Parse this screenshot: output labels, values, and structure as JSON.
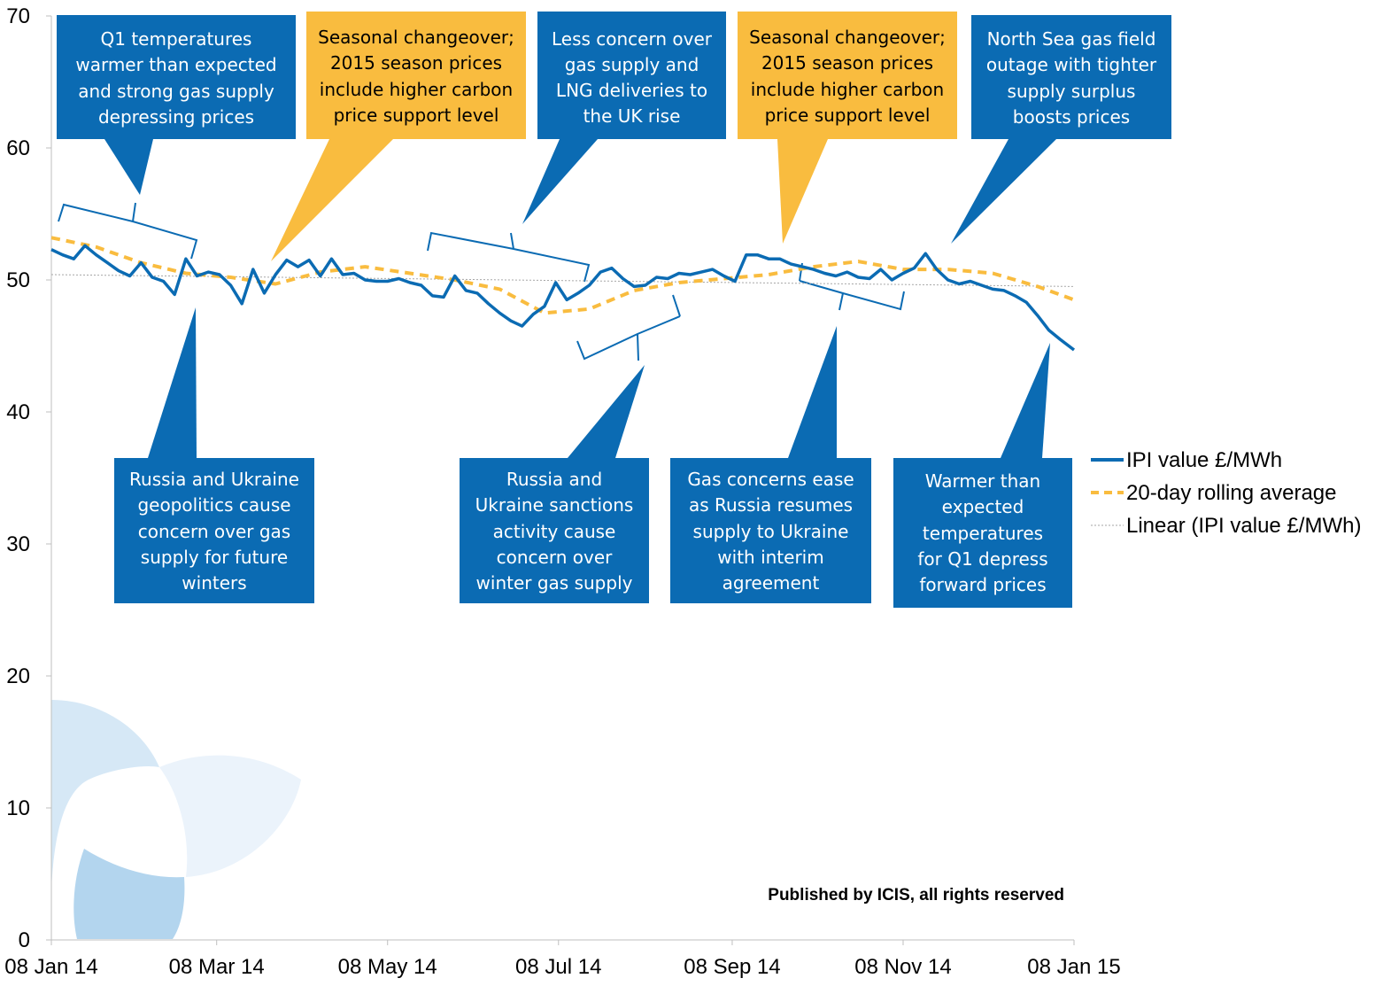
{
  "chart_data": {
    "type": "line",
    "title": "",
    "xlabel": "",
    "ylabel": "",
    "ylim": [
      0,
      70
    ],
    "y_ticks": [
      "0",
      "10",
      "20",
      "30",
      "40",
      "50",
      "60",
      "70"
    ],
    "x_tick_labels": [
      "08 Jan 14",
      "08 Mar 14",
      "08 May 14",
      "08 Jul 14",
      "08 Sep 14",
      "08 Nov 14",
      "08 Jan 15"
    ],
    "x_range": [
      "2014-01-08",
      "2015-01-08"
    ],
    "grid": false,
    "legend_position": "right",
    "series": [
      {
        "name": "IPI value £/MWh",
        "color": "#0B6BB3",
        "style": "solid",
        "x": [
          "2014-01-08",
          "2014-01-12",
          "2014-01-16",
          "2014-01-20",
          "2014-01-24",
          "2014-01-28",
          "2014-02-01",
          "2014-02-05",
          "2014-02-09",
          "2014-02-13",
          "2014-02-17",
          "2014-02-21",
          "2014-02-25",
          "2014-03-01",
          "2014-03-05",
          "2014-03-09",
          "2014-03-13",
          "2014-03-17",
          "2014-03-21",
          "2014-03-25",
          "2014-03-29",
          "2014-04-02",
          "2014-04-06",
          "2014-04-10",
          "2014-04-14",
          "2014-04-18",
          "2014-04-22",
          "2014-04-26",
          "2014-04-30",
          "2014-05-04",
          "2014-05-08",
          "2014-05-12",
          "2014-05-16",
          "2014-05-20",
          "2014-05-24",
          "2014-05-28",
          "2014-06-01",
          "2014-06-05",
          "2014-06-09",
          "2014-06-13",
          "2014-06-17",
          "2014-06-21",
          "2014-06-25",
          "2014-06-29",
          "2014-07-03",
          "2014-07-07",
          "2014-07-11",
          "2014-07-15",
          "2014-07-19",
          "2014-07-23",
          "2014-07-27",
          "2014-07-31",
          "2014-08-04",
          "2014-08-08",
          "2014-08-12",
          "2014-08-16",
          "2014-08-20",
          "2014-08-24",
          "2014-08-28",
          "2014-09-01",
          "2014-09-05",
          "2014-09-09",
          "2014-09-13",
          "2014-09-17",
          "2014-09-21",
          "2014-09-25",
          "2014-09-29",
          "2014-10-03",
          "2014-10-07",
          "2014-10-11",
          "2014-10-15",
          "2014-10-19",
          "2014-10-23",
          "2014-10-27",
          "2014-10-31",
          "2014-11-04",
          "2014-11-08",
          "2014-11-12",
          "2014-11-16",
          "2014-11-20",
          "2014-11-24",
          "2014-11-28",
          "2014-12-02",
          "2014-12-06",
          "2014-12-10",
          "2014-12-14",
          "2014-12-18",
          "2014-12-22",
          "2014-12-26",
          "2014-12-30",
          "2015-01-03",
          "2015-01-08"
        ],
        "values": [
          52.3,
          51.9,
          51.6,
          52.6,
          51.9,
          51.3,
          50.7,
          50.3,
          51.3,
          50.2,
          49.9,
          48.9,
          51.6,
          50.3,
          50.6,
          50.4,
          49.6,
          48.2,
          50.8,
          49.0,
          50.4,
          51.5,
          51.0,
          51.5,
          50.3,
          51.6,
          50.4,
          50.5,
          50.0,
          49.9,
          49.9,
          50.1,
          49.8,
          49.6,
          48.8,
          48.7,
          50.3,
          49.2,
          49.0,
          48.2,
          47.5,
          46.9,
          46.5,
          47.4,
          48.0,
          49.8,
          48.5,
          49.0,
          49.6,
          50.6,
          50.9,
          50.1,
          49.5,
          49.6,
          50.2,
          50.1,
          50.5,
          50.4,
          50.6,
          50.8,
          50.3,
          49.9,
          51.9,
          51.9,
          51.6,
          51.6,
          51.2,
          51.0,
          50.8,
          50.5,
          50.3,
          50.6,
          50.2,
          50.1,
          50.8,
          50.0,
          50.5,
          50.9,
          52.0,
          50.8,
          50.0,
          49.7,
          49.9,
          49.6,
          49.3,
          49.2,
          48.8,
          48.3,
          47.3,
          46.2,
          45.5,
          44.7
        ]
      },
      {
        "name": "20-day rolling average",
        "color": "#F9BC3F",
        "style": "dashed",
        "x": [
          "2014-01-08",
          "2014-01-24",
          "2014-02-09",
          "2014-02-25",
          "2014-03-13",
          "2014-03-29",
          "2014-04-14",
          "2014-04-30",
          "2014-05-16",
          "2014-06-01",
          "2014-06-17",
          "2014-07-03",
          "2014-07-19",
          "2014-08-04",
          "2014-08-20",
          "2014-09-05",
          "2014-09-21",
          "2014-10-07",
          "2014-10-23",
          "2014-11-08",
          "2014-11-24",
          "2014-12-10",
          "2014-12-26",
          "2015-01-08"
        ],
        "values": [
          53.2,
          52.5,
          51.3,
          50.5,
          50.2,
          49.7,
          50.6,
          51.0,
          50.5,
          50.0,
          49.3,
          47.5,
          47.8,
          49.2,
          49.8,
          50.1,
          50.4,
          51.0,
          51.4,
          50.8,
          50.8,
          50.5,
          49.5,
          48.5
        ]
      },
      {
        "name": "Linear (IPI value £/MWh)",
        "color": "#A6A6A6",
        "style": "dotted",
        "x": [
          "2014-01-08",
          "2015-01-08"
        ],
        "values": [
          50.4,
          49.5
        ]
      }
    ],
    "annotations": [
      {
        "text": "Q1 temperatures warmer than expected and strong gas supply depressing prices",
        "color": "#0B6BB3"
      },
      {
        "text": "Seasonal changeover; 2015 season prices include higher carbon price support level",
        "color": "#F9BC3F"
      },
      {
        "text": "Less concern over gas supply and LNG deliveries to the UK rise",
        "color": "#0B6BB3"
      },
      {
        "text": "Seasonal changeover; 2015 season prices include higher carbon price support level",
        "color": "#F9BC3F"
      },
      {
        "text": "North Sea gas field outage with tighter supply surplus boosts prices",
        "color": "#0B6BB3"
      },
      {
        "text": "Russia and Ukraine geopolitics cause concern over gas supply for future winters",
        "color": "#0B6BB3"
      },
      {
        "text": "Russia and Ukraine sanctions activity cause concern over winter gas supply",
        "color": "#0B6BB3"
      },
      {
        "text": "Gas concerns ease as Russia resumes supply to Ukraine with interim agreement",
        "color": "#0B6BB3"
      },
      {
        "text": "Warmer than expected temperatures for Q1 depress forward prices",
        "color": "#0B6BB3"
      }
    ],
    "credit": "Published by ICIS, all rights reserved"
  }
}
